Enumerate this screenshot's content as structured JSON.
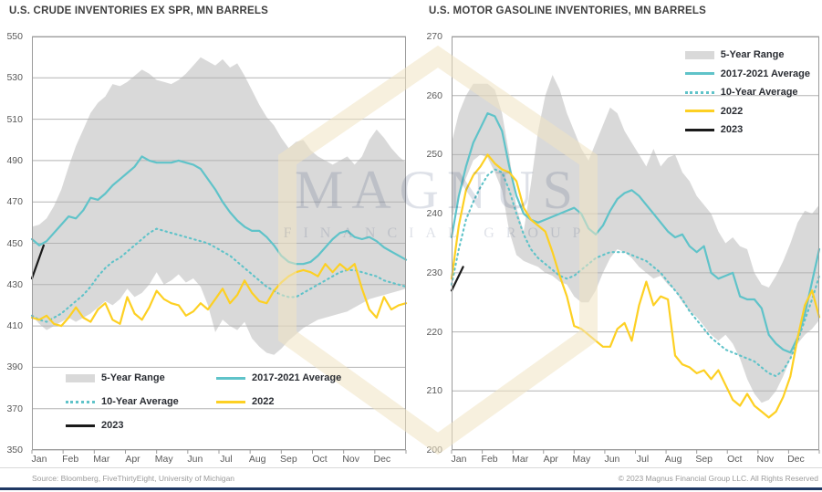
{
  "footer": {
    "source": "Source: Bloomberg, FiveThirtyEight, University of Michigan",
    "copyright": "© 2023 Magnus Financial Group LLC. All Rights Reserved"
  },
  "watermark": {
    "line1": "MAGNUS",
    "line2": "FINANCIAL GROUP"
  },
  "colors": {
    "teal": "#5fc3c9",
    "yellow": "#fdd023",
    "black": "#1a1a1a",
    "band": "#d9d9d9",
    "grid": "#b3b3b3",
    "border": "#9c9c9c",
    "navy": "#1f3864",
    "watermark_cream": "#f0e3c2"
  },
  "chart_data": [
    {
      "type": "line",
      "title": "U.S. CRUDE INVENTORIES EX SPR, MN BARRELS",
      "xlabel": "",
      "ylabel": "",
      "ylim": [
        350,
        550
      ],
      "yticks": [
        550,
        530,
        510,
        490,
        470,
        450,
        430,
        410,
        390,
        370,
        350
      ],
      "x_categories": [
        "Jan",
        "Feb",
        "Mar",
        "Apr",
        "May",
        "Jun",
        "Jul",
        "Aug",
        "Sep",
        "Oct",
        "Nov",
        "Dec"
      ],
      "points_per_year": 52,
      "grid": true,
      "legend_position": "bottom-left",
      "series": [
        {
          "name": "5-Year Range",
          "type": "band",
          "color": "#d9d9d9",
          "top": [
            458,
            459,
            462,
            468,
            476,
            487,
            497,
            505,
            513,
            518,
            521,
            527,
            526,
            528,
            531,
            534,
            532,
            529,
            528,
            527,
            529,
            532,
            536,
            540,
            538,
            536,
            539,
            535,
            537,
            531,
            524,
            517,
            511,
            507,
            501,
            496,
            499,
            500,
            495,
            492,
            490,
            488,
            490,
            492,
            488,
            492,
            500,
            505,
            501,
            496,
            492,
            489
          ],
          "bottom": [
            415,
            411,
            408,
            410,
            412,
            414,
            412,
            414,
            416,
            419,
            422,
            420,
            423,
            428,
            424,
            426,
            430,
            436,
            430,
            432,
            435,
            431,
            433,
            429,
            420,
            407,
            413,
            410,
            408,
            412,
            404,
            400,
            397,
            396,
            399,
            403,
            406,
            409,
            411,
            413,
            414,
            415,
            416,
            417,
            419,
            421,
            423,
            424,
            425,
            426,
            427,
            428
          ]
        },
        {
          "name": "2017-2021 Average",
          "type": "line",
          "style": "solid",
          "color": "#5fc3c9",
          "values": [
            452,
            449,
            451,
            455,
            459,
            463,
            462,
            466,
            472,
            471,
            474,
            478,
            481,
            484,
            487,
            492,
            490,
            489,
            489,
            489,
            490,
            489,
            488,
            486,
            481,
            476,
            470,
            465,
            461,
            458,
            456,
            456,
            453,
            449,
            444,
            441,
            440,
            440,
            441,
            444,
            448,
            452,
            455,
            456,
            453,
            452,
            453,
            451,
            448,
            446,
            444,
            442
          ]
        },
        {
          "name": "10-Year Average",
          "type": "line",
          "style": "dotted",
          "color": "#5fc3c9",
          "values": [
            415,
            413,
            412,
            414,
            416,
            419,
            422,
            425,
            429,
            434,
            438,
            441,
            443,
            446,
            449,
            452,
            455,
            457,
            456,
            455,
            454,
            453,
            452,
            451,
            450,
            448,
            446,
            444,
            441,
            438,
            435,
            432,
            429,
            427,
            425,
            424,
            424,
            426,
            428,
            430,
            432,
            434,
            436,
            437,
            437,
            436,
            435,
            434,
            432,
            431,
            430,
            429
          ]
        },
        {
          "name": "2022",
          "type": "line",
          "style": "solid",
          "color": "#fdd023",
          "values": [
            414,
            413,
            415,
            411,
            410,
            414,
            419,
            414,
            412,
            418,
            421,
            413,
            411,
            424,
            416,
            413,
            419,
            427,
            423,
            421,
            420,
            415,
            417,
            421,
            418,
            423,
            428,
            421,
            425,
            432,
            426,
            422,
            421,
            427,
            431,
            434,
            436,
            437,
            436,
            434,
            440,
            436,
            440,
            437,
            440,
            428,
            418,
            414,
            424,
            418,
            420,
            421
          ]
        },
        {
          "name": "2023",
          "type": "line",
          "style": "solid",
          "color": "#1a1a1a",
          "x": [
            0,
            1.6
          ],
          "values": [
            433,
            449
          ]
        }
      ]
    },
    {
      "type": "line",
      "title": "U.S. MOTOR GASOLINE INVENTORIES, MN BARRELS",
      "xlabel": "",
      "ylabel": "",
      "ylim": [
        200,
        270
      ],
      "yticks": [
        270,
        260,
        250,
        240,
        230,
        220,
        210,
        200
      ],
      "x_categories": [
        "Jan",
        "Feb",
        "Mar",
        "Apr",
        "May",
        "Jun",
        "Jul",
        "Aug",
        "Sep",
        "Oct",
        "Nov",
        "Dec"
      ],
      "points_per_year": 52,
      "grid": true,
      "legend_position": "top-right",
      "series": [
        {
          "name": "5-Year Range",
          "type": "band",
          "color": "#d9d9d9",
          "top": [
            252,
            257,
            260,
            262,
            262,
            262,
            261,
            257,
            250,
            241,
            237,
            245,
            254,
            260,
            263.5,
            261,
            257,
            254,
            251,
            249,
            252,
            255,
            258,
            257,
            254,
            252,
            250,
            248,
            251,
            248,
            249.5,
            250,
            247,
            245.5,
            243,
            241.5,
            240,
            237,
            235,
            236,
            234.5,
            234,
            230,
            228,
            227.5,
            229.5,
            232,
            235,
            238.5,
            240.5,
            240,
            241.5
          ],
          "bottom": [
            239,
            243,
            246,
            249,
            250,
            249.5,
            247,
            244,
            237,
            233,
            232,
            231.5,
            231,
            230,
            229.5,
            228.5,
            228,
            226,
            225,
            225,
            227,
            230,
            232.5,
            234,
            233.5,
            232.5,
            231,
            230,
            229,
            229.5,
            228,
            227,
            225,
            223.5,
            222.5,
            221,
            219.5,
            218.5,
            219.5,
            218,
            215.5,
            212,
            209.5,
            208,
            208.5,
            210,
            212.5,
            215.5,
            218,
            219.5,
            220.5,
            222
          ]
        },
        {
          "name": "2017-2021 Average",
          "type": "line",
          "style": "solid",
          "color": "#5fc3c9",
          "values": [
            236,
            243,
            248,
            252,
            254.5,
            257,
            256.5,
            254,
            248,
            243,
            240,
            239,
            238.5,
            239,
            239.5,
            240,
            240.5,
            241,
            240,
            237.5,
            236.5,
            238,
            240.5,
            242.5,
            243.5,
            244,
            243,
            241.5,
            240,
            238.5,
            237,
            236,
            236.5,
            234.5,
            233.5,
            234.5,
            230,
            229,
            229.5,
            230,
            226,
            225.5,
            225.5,
            224,
            219.5,
            218,
            217,
            216.5,
            219,
            223,
            228.5,
            234
          ]
        },
        {
          "name": "10-Year Average",
          "type": "line",
          "style": "dotted",
          "color": "#5fc3c9",
          "values": [
            228,
            234,
            239,
            242,
            244.5,
            246.5,
            247.5,
            247,
            244,
            240,
            236.5,
            234,
            232.5,
            231.5,
            230.5,
            229.5,
            229,
            229.5,
            230.5,
            231.5,
            232.5,
            233,
            233.5,
            233.5,
            233.5,
            233,
            232.5,
            232,
            231,
            230,
            228.5,
            227,
            225.5,
            223.5,
            222,
            220.5,
            219,
            218,
            217,
            216.5,
            216,
            215.5,
            215,
            214,
            213,
            212.5,
            213.5,
            215.5,
            218.5,
            222,
            225.5,
            229.5
          ]
        },
        {
          "name": "2022",
          "type": "line",
          "style": "solid",
          "color": "#fdd023",
          "values": [
            229,
            238,
            244,
            246.5,
            248,
            250,
            248.5,
            247.5,
            247,
            245.5,
            241,
            239,
            238,
            237,
            233.5,
            229.5,
            226,
            221,
            220.5,
            219.5,
            218.5,
            217.5,
            217.5,
            220.5,
            221.5,
            218.5,
            224.5,
            228.5,
            224.5,
            226,
            225.5,
            216,
            214.5,
            214,
            213,
            213.5,
            212,
            213.5,
            211,
            208.5,
            207.5,
            209.5,
            207.5,
            206.5,
            205.5,
            206.5,
            209,
            212.5,
            219,
            224.5,
            227,
            222.5
          ]
        },
        {
          "name": "2023",
          "type": "line",
          "style": "solid",
          "color": "#1a1a1a",
          "x": [
            0,
            1.6
          ],
          "values": [
            227,
            231
          ]
        }
      ]
    }
  ]
}
